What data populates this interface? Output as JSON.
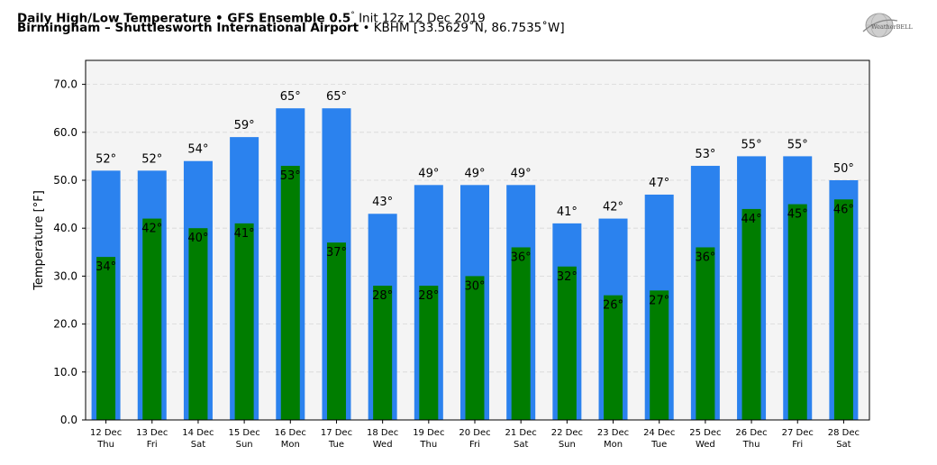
{
  "header": {
    "line1_bold": "Daily High/Low Temperature • GFS Ensemble 0.5",
    "line1_deg": "°",
    "line1_rest": "Init 12z 12 Dec 2019",
    "line2_bold": "Birmingham – Shuttlesworth International Airport",
    "line2_rest": "• KBHM [33.5629˚N, 86.7535˚W]"
  },
  "logo": {
    "text": "WeatherBELL",
    "icon": "weatherbell-globe-logo"
  },
  "colors": {
    "high_bar": "#2b82ee",
    "low_bar": "#007d00",
    "plot_background": "#f4f4f4",
    "grid": "#d6d6d6"
  },
  "chart_data": {
    "type": "bar",
    "ylabel": "Temperature [°F]",
    "ylim": [
      0,
      75
    ],
    "yticks": [
      0.0,
      10.0,
      20.0,
      30.0,
      40.0,
      50.0,
      60.0,
      70.0
    ],
    "ytick_labels": [
      "0.0",
      "10.0",
      "20.0",
      "30.0",
      "40.0",
      "50.0",
      "60.0",
      "70.0"
    ],
    "grid": true,
    "categories": [
      {
        "date": "12 Dec",
        "day": "Thu"
      },
      {
        "date": "13 Dec",
        "day": "Fri"
      },
      {
        "date": "14 Dec",
        "day": "Sat"
      },
      {
        "date": "15 Dec",
        "day": "Sun"
      },
      {
        "date": "16 Dec",
        "day": "Mon"
      },
      {
        "date": "17 Dec",
        "day": "Tue"
      },
      {
        "date": "18 Dec",
        "day": "Wed"
      },
      {
        "date": "19 Dec",
        "day": "Thu"
      },
      {
        "date": "20 Dec",
        "day": "Fri"
      },
      {
        "date": "21 Dec",
        "day": "Sat"
      },
      {
        "date": "22 Dec",
        "day": "Sun"
      },
      {
        "date": "23 Dec",
        "day": "Mon"
      },
      {
        "date": "24 Dec",
        "day": "Tue"
      },
      {
        "date": "25 Dec",
        "day": "Wed"
      },
      {
        "date": "26 Dec",
        "day": "Thu"
      },
      {
        "date": "27 Dec",
        "day": "Fri"
      },
      {
        "date": "28 Dec",
        "day": "Sat"
      }
    ],
    "series": [
      {
        "key": "high",
        "values": [
          52,
          52,
          54,
          59,
          65,
          65,
          43,
          49,
          49,
          49,
          41,
          42,
          47,
          53,
          55,
          55,
          50
        ]
      },
      {
        "key": "low",
        "values": [
          34,
          42,
          40,
          41,
          53,
          37,
          28,
          28,
          30,
          36,
          32,
          26,
          27,
          36,
          44,
          45,
          46
        ]
      }
    ],
    "value_suffix": "°"
  }
}
